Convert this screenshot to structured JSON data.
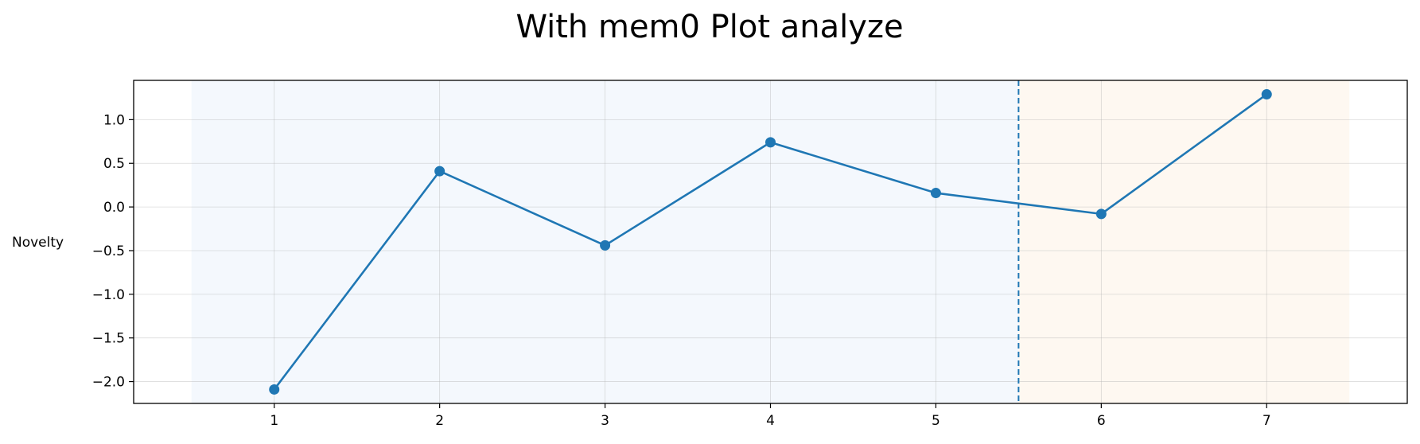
{
  "chart_data": {
    "type": "line",
    "title": "With mem0 Plot analyze",
    "xlabel": "",
    "ylabel": "Novelty",
    "x": [
      1,
      2,
      3,
      4,
      5,
      6,
      7
    ],
    "series": [
      {
        "values": [
          -2.09,
          0.41,
          -0.44,
          0.74,
          0.16,
          -0.08,
          1.29
        ],
        "color": "#1f77b4",
        "marker": "circle"
      }
    ],
    "xticks": [
      1,
      2,
      3,
      4,
      5,
      6,
      7
    ],
    "yticks": [
      1.0,
      0.5,
      0.0,
      -0.5,
      -1.0,
      -1.5,
      -2.0
    ],
    "ytick_labels": [
      "1.0",
      "0.5",
      "0.0",
      "−0.5",
      "−1.0",
      "−1.5",
      "−2.0"
    ],
    "xlim": [
      0.15,
      7.85
    ],
    "ylim": [
      -2.25,
      1.45
    ],
    "grid": true,
    "legend": "none",
    "vline": {
      "x": 5.5,
      "style": "dashed",
      "color": "#1f77b4"
    },
    "shaded_regions": [
      {
        "x_start": 0.5,
        "x_end": 5.5,
        "color": "#dce8f7"
      },
      {
        "x_start": 5.5,
        "x_end": 7.5,
        "color": "#fde9d2"
      }
    ]
  }
}
